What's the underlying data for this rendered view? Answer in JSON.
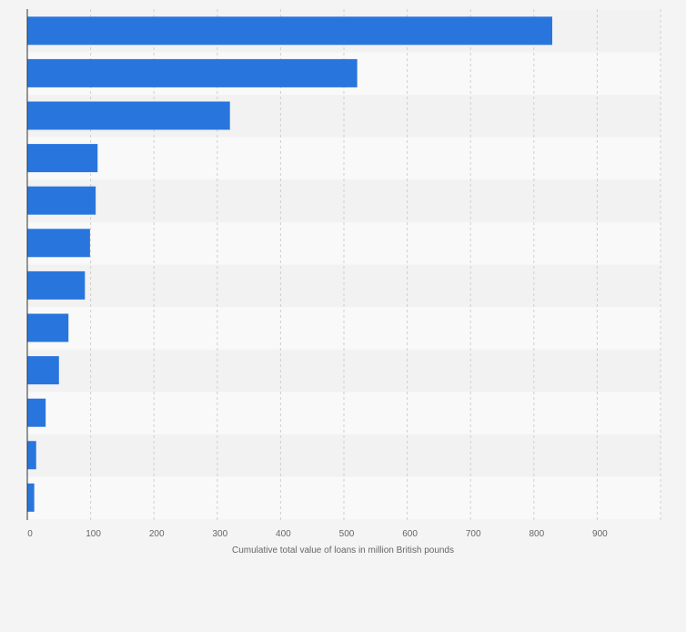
{
  "chart_data": {
    "type": "bar",
    "orientation": "horizontal",
    "categories": [
      "",
      "",
      "",
      "",
      "",
      "",
      "",
      "",
      "",
      "",
      "",
      ""
    ],
    "values": [
      829,
      521,
      320,
      111,
      108,
      99,
      91,
      65,
      50,
      29,
      14,
      11
    ],
    "xlabel": "Cumulative total value of loans in million British pounds",
    "ylabel": "",
    "xlim": [
      0,
      1000
    ],
    "xticks": [
      0,
      100,
      200,
      300,
      400,
      500,
      600,
      700,
      800,
      900
    ],
    "grid": true,
    "bar_color": "#2876dd",
    "band_colors": [
      "#f2f2f2",
      "#f9f9f9"
    ]
  }
}
